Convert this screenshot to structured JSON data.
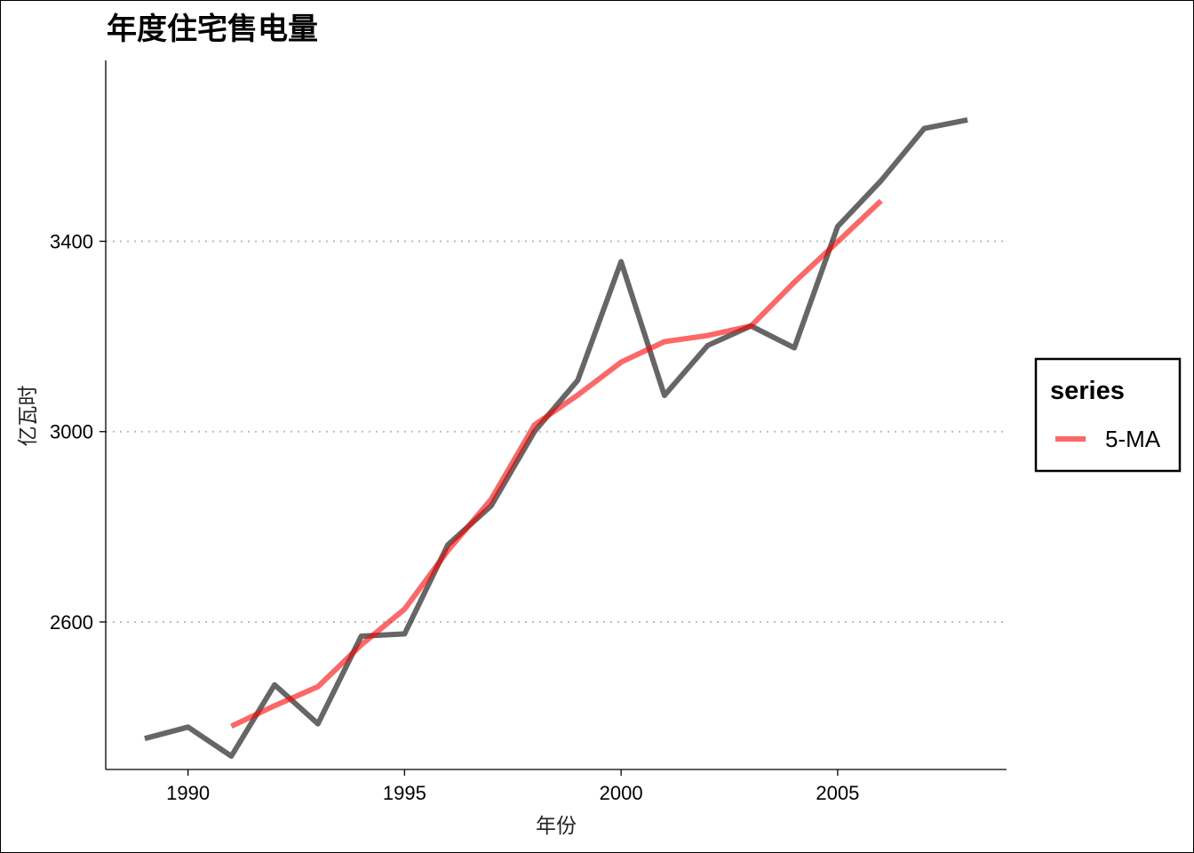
{
  "chart_data": {
    "type": "line",
    "title": "年度住宅售电量",
    "xlabel": "年份",
    "ylabel": "亿瓦时",
    "xlim": [
      1988.1,
      2008.9
    ],
    "ylim": [
      2290,
      3780
    ],
    "x_ticks": [
      1990,
      1995,
      2000,
      2005
    ],
    "x_tick_labels": [
      "1990",
      "1995",
      "2000",
      "2005"
    ],
    "y_ticks": [
      2600,
      3000,
      3400
    ],
    "y_tick_labels": [
      "2600",
      "3000",
      "3400"
    ],
    "grid": "horizontal dotted major lines",
    "legend_position": "right",
    "legend_title": "series",
    "series": [
      {
        "color": "#000000",
        "opacity": 0.6,
        "x": [
          1989,
          1990,
          1991,
          1992,
          1993,
          1994,
          1995,
          1996,
          1997,
          1998,
          1999,
          2000,
          2001,
          2002,
          2003,
          2004,
          2005,
          2006,
          2007,
          2008
        ],
        "values": [
          2355,
          2379,
          2318,
          2468,
          2386,
          2570,
          2575,
          2762,
          2844,
          3000,
          3108,
          3357,
          3076,
          3181,
          3222,
          3176,
          3431,
          3527,
          3637,
          3655
        ]
      },
      {
        "name": "5-MA",
        "color": "#ff0000",
        "opacity": 0.6,
        "x": [
          1991,
          1992,
          1993,
          1994,
          1995,
          1996,
          1997,
          1998,
          1999,
          2000,
          2001,
          2002,
          2003,
          2004,
          2005,
          2006
        ],
        "values": [
          2381,
          2424,
          2464,
          2552,
          2627,
          2750,
          2858,
          3014,
          3077,
          3146,
          3189,
          3202,
          3222,
          3314,
          3399,
          3485
        ]
      }
    ]
  }
}
